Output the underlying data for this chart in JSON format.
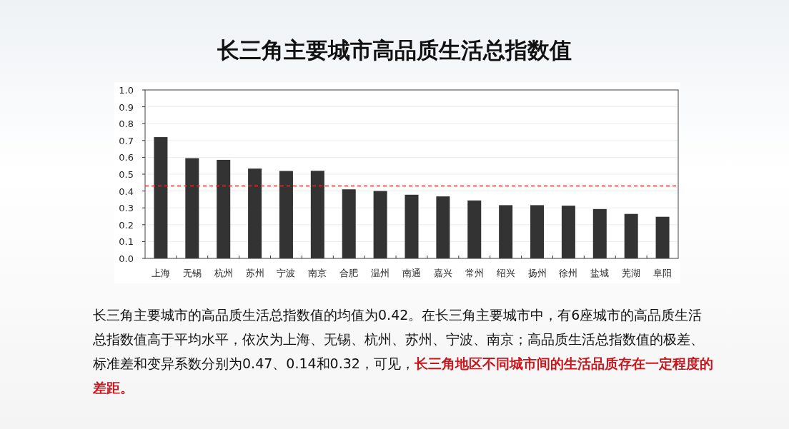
{
  "chart_data": {
    "type": "bar",
    "title": "长三角主要城市高品质生活总指数值",
    "categories": [
      "上海",
      "无锡",
      "杭州",
      "苏州",
      "宁波",
      "南京",
      "合肥",
      "温州",
      "南通",
      "嘉兴",
      "常州",
      "绍兴",
      "扬州",
      "徐州",
      "盐城",
      "芜湖",
      "阜阳"
    ],
    "values": [
      0.72,
      0.595,
      0.585,
      0.533,
      0.519,
      0.52,
      0.41,
      0.4,
      0.378,
      0.368,
      0.344,
      0.316,
      0.316,
      0.313,
      0.293,
      0.264,
      0.247
    ],
    "color": "#333333",
    "ylim": [
      0,
      1
    ],
    "yticks": [
      {
        "value": 0,
        "label": "0.0"
      },
      0.1,
      0.2,
      0.3,
      0.4,
      0.5,
      0.6,
      0.7,
      0.8,
      0.9,
      {
        "value": 1,
        "label": "1.0"
      }
    ],
    "grid": "y",
    "ref_lines": [
      {
        "axis": "y",
        "value": 0.43,
        "color": "#e03030",
        "line_style": "dashed"
      }
    ],
    "annotations": [
      "长三角主要城市的高品质生活总指数值的均值为0.42。在长三角主要城市中，有6座城市的高品质生活总指数值高于平均水平，依次为上海、无锡、杭州、苏州、宁波、南京；高品质生活总指数值的极差、标准差和变异系数分别为0.47、0.14和0.32，可见，",
      "长三角地区不同城市间的生活品质存在一定程度的差距。"
    ]
  }
}
